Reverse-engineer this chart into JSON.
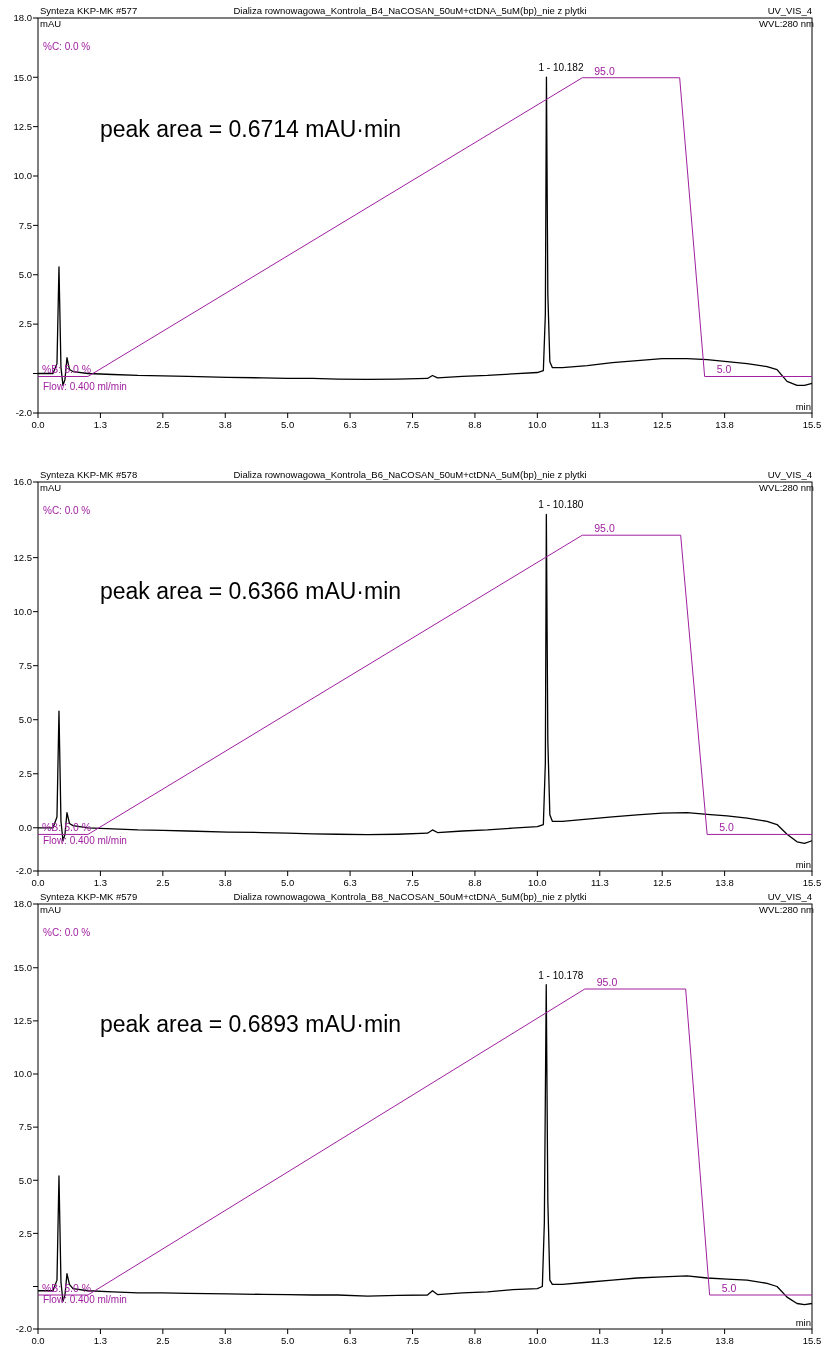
{
  "chart_data": [
    {
      "type": "line",
      "title": "Dializa rownowagowa_Kontrola_B4_NaCOSAN_50uM+ctDNA_5uM(bp)_nie z plytki",
      "xlabel": "min",
      "ylabel": "mAU",
      "xlim": [
        0,
        15.5
      ],
      "ylim": [
        -2,
        18
      ],
      "y2lim": [
        -6,
        113
      ],
      "xticks": [
        {
          "value": 0,
          "label": "0.0"
        },
        {
          "value": 1.25,
          "label": "1.3"
        },
        {
          "value": 2.5,
          "label": "2.5"
        },
        {
          "value": 3.75,
          "label": "3.8"
        },
        {
          "value": 5,
          "label": "5.0"
        },
        {
          "value": 6.25,
          "label": "6.3"
        },
        {
          "value": 7.5,
          "label": "7.5"
        },
        {
          "value": 8.75,
          "label": "8.8"
        },
        {
          "value": 10,
          "label": "10.0"
        },
        {
          "value": 11.25,
          "label": "11.3"
        },
        {
          "value": 12.5,
          "label": "12.5"
        },
        {
          "value": 13.75,
          "label": "13.8"
        },
        {
          "value": 15.5,
          "label": "15.5"
        }
      ],
      "yticks": [
        {
          "value": -2,
          "label": "-2.0"
        },
        {
          "value": 0,
          "label": null
        },
        {
          "value": 2.5,
          "label": "2.5"
        },
        {
          "value": 5,
          "label": "5.0"
        },
        {
          "value": 7.5,
          "label": "7.5"
        },
        {
          "value": 10,
          "label": "10.0"
        },
        {
          "value": 12.5,
          "label": "12.5"
        },
        {
          "value": 15,
          "label": "15.0"
        },
        {
          "value": 18,
          "label": "18.0"
        }
      ],
      "series": [
        {
          "color": "#000000",
          "x": [
            0,
            0.3,
            0.38,
            0.42,
            0.46,
            0.5,
            0.54,
            0.58,
            0.63,
            0.7,
            1.0,
            1.5,
            2.0,
            2.5,
            3.0,
            3.8,
            4.5,
            5.0,
            5.5,
            6.0,
            6.6,
            7.2,
            7.8,
            7.9,
            8.0,
            8.5,
            9.0,
            9.5,
            10.0,
            10.12,
            10.16,
            10.182,
            10.21,
            10.25,
            10.3,
            10.5,
            11.0,
            11.5,
            12.0,
            12.5,
            13.0,
            13.4,
            13.8,
            14.2,
            14.6,
            14.8,
            15.0,
            15.2,
            15.35,
            15.5
          ],
          "values": [
            0,
            0,
            0.5,
            5.4,
            0.3,
            -0.6,
            -0.3,
            0.8,
            0.2,
            0.1,
            0,
            -0.05,
            -0.1,
            -0.12,
            -0.15,
            -0.2,
            -0.22,
            -0.25,
            -0.25,
            -0.28,
            -0.3,
            -0.28,
            -0.25,
            -0.1,
            -0.22,
            -0.15,
            -0.1,
            -0.02,
            0.05,
            0.15,
            3,
            15,
            4,
            0.6,
            0.3,
            0.3,
            0.4,
            0.55,
            0.65,
            0.75,
            0.75,
            0.7,
            0.6,
            0.5,
            0.35,
            0.2,
            -0.4,
            -0.6,
            -0.6,
            -0.5
          ]
        },
        {
          "color": "#a020a0",
          "axis": "y2",
          "x": [
            0,
            1.0,
            10.9,
            12.85,
            13.35,
            15.5
          ],
          "values": [
            5,
            5,
            95,
            95,
            5,
            5
          ],
          "value_labels": [
            "%B: 5.0 %",
            null,
            "95.0",
            null,
            "5.0",
            null
          ]
        }
      ],
      "annotations": [
        "Synteza KKP-MK #577",
        "UV_VIS_4",
        "WVL:280 nm",
        "%C: 0.0 %",
        "Flow: 0.400 ml/min",
        "peak area = 0.6714 mAU·min",
        {
          "text": "1 - 10.182",
          "x": 10.182,
          "y": 15
        }
      ]
    },
    {
      "type": "line",
      "title": "Dializa rownowagowa_Kontrola_B6_NaCOSAN_50uM+ctDNA_5uM(bp)_nie z plytki",
      "xlabel": "min",
      "ylabel": "mAU",
      "xlim": [
        0,
        15.5
      ],
      "ylim": [
        -2,
        16
      ],
      "y2lim": [
        -6,
        111
      ],
      "xticks": [
        {
          "value": 0,
          "label": "0.0"
        },
        {
          "value": 1.25,
          "label": "1.3"
        },
        {
          "value": 2.5,
          "label": "2.5"
        },
        {
          "value": 3.75,
          "label": "3.8"
        },
        {
          "value": 5,
          "label": "5.0"
        },
        {
          "value": 6.25,
          "label": "6.3"
        },
        {
          "value": 7.5,
          "label": "7.5"
        },
        {
          "value": 8.75,
          "label": "8.8"
        },
        {
          "value": 10,
          "label": "10.0"
        },
        {
          "value": 11.25,
          "label": "11.3"
        },
        {
          "value": 12.5,
          "label": "12.5"
        },
        {
          "value": 13.75,
          "label": "13.8"
        },
        {
          "value": 15.5,
          "label": "15.5"
        }
      ],
      "yticks": [
        {
          "value": -2,
          "label": "-2.0"
        },
        {
          "value": 0,
          "label": "0.0"
        },
        {
          "value": 2.5,
          "label": "2.5"
        },
        {
          "value": 5,
          "label": "5.0"
        },
        {
          "value": 7.5,
          "label": "7.5"
        },
        {
          "value": 10,
          "label": "10.0"
        },
        {
          "value": 12.5,
          "label": "12.5"
        },
        {
          "value": 16,
          "label": "16.0"
        }
      ],
      "series": [
        {
          "color": "#000000",
          "x": [
            0,
            0.3,
            0.38,
            0.42,
            0.46,
            0.5,
            0.54,
            0.58,
            0.63,
            0.7,
            1.0,
            1.5,
            2.0,
            2.5,
            3.0,
            3.8,
            4.5,
            5.0,
            5.5,
            6.0,
            6.6,
            7.2,
            7.8,
            7.9,
            8.0,
            8.5,
            9.0,
            9.5,
            10.0,
            10.12,
            10.16,
            10.18,
            10.21,
            10.25,
            10.3,
            10.5,
            11.0,
            11.5,
            12.0,
            12.5,
            13.0,
            13.4,
            13.8,
            14.2,
            14.6,
            14.8,
            15.0,
            15.2,
            15.35,
            15.5
          ],
          "values": [
            0,
            0,
            0.5,
            5.4,
            0.3,
            -0.6,
            -0.3,
            0.7,
            0.2,
            0.1,
            0,
            -0.05,
            -0.1,
            -0.12,
            -0.15,
            -0.2,
            -0.22,
            -0.25,
            -0.28,
            -0.3,
            -0.32,
            -0.3,
            -0.25,
            -0.1,
            -0.22,
            -0.15,
            -0.1,
            -0.02,
            0.05,
            0.15,
            3,
            14.5,
            4,
            0.6,
            0.3,
            0.3,
            0.4,
            0.5,
            0.6,
            0.68,
            0.7,
            0.62,
            0.55,
            0.45,
            0.3,
            0.15,
            -0.3,
            -0.65,
            -0.72,
            -0.6
          ]
        },
        {
          "color": "#a020a0",
          "axis": "y2",
          "x": [
            0,
            1.0,
            10.9,
            12.87,
            13.4,
            15.5
          ],
          "values": [
            5,
            5,
            95,
            95,
            5,
            5
          ],
          "value_labels": [
            "%B: 5.0 %",
            null,
            "95.0",
            null,
            "5.0",
            null
          ]
        }
      ],
      "annotations": [
        "Synteza KKP-MK #578",
        "UV_VIS_4",
        "WVL:280 nm",
        "%C: 0.0 %",
        "Flow: 0.400 ml/min",
        "peak area = 0.6366 mAU·min",
        {
          "text": "1 - 10.180",
          "x": 10.18,
          "y": 14.5
        }
      ]
    },
    {
      "type": "line",
      "title": "Dializa rownowagowa_Kontrola_B8_NaCOSAN_50uM+ctDNA_5uM(bp)_nie z plytki",
      "xlabel": "min",
      "ylabel": "mAU",
      "xlim": [
        0,
        15.5
      ],
      "ylim": [
        -2,
        18
      ],
      "y2lim": [
        -5,
        120
      ],
      "xticks": [
        {
          "value": 0,
          "label": "0.0"
        },
        {
          "value": 1.25,
          "label": "1.3"
        },
        {
          "value": 2.5,
          "label": "2.5"
        },
        {
          "value": 3.75,
          "label": "3.8"
        },
        {
          "value": 5,
          "label": "5.0"
        },
        {
          "value": 6.25,
          "label": "6.3"
        },
        {
          "value": 7.5,
          "label": "7.5"
        },
        {
          "value": 8.75,
          "label": "8.8"
        },
        {
          "value": 10,
          "label": "10.0"
        },
        {
          "value": 11.25,
          "label": "11.3"
        },
        {
          "value": 12.5,
          "label": "12.5"
        },
        {
          "value": 13.75,
          "label": "13.8"
        },
        {
          "value": 15.5,
          "label": "15.5"
        }
      ],
      "yticks": [
        {
          "value": -2,
          "label": "-2.0"
        },
        {
          "value": 0,
          "label": null
        },
        {
          "value": 2.5,
          "label": "2.5"
        },
        {
          "value": 5,
          "label": "5.0"
        },
        {
          "value": 7.5,
          "label": "7.5"
        },
        {
          "value": 10,
          "label": "10.0"
        },
        {
          "value": 12.5,
          "label": "12.5"
        },
        {
          "value": 15,
          "label": "15.0"
        },
        {
          "value": 18,
          "label": "18.0"
        }
      ],
      "series": [
        {
          "color": "#000000",
          "x": [
            0,
            0.3,
            0.38,
            0.42,
            0.46,
            0.5,
            0.54,
            0.58,
            0.63,
            0.7,
            1.0,
            1.5,
            2.0,
            2.5,
            3.0,
            3.8,
            4.5,
            5.0,
            5.5,
            6.0,
            6.6,
            7.2,
            7.8,
            7.9,
            8.0,
            8.5,
            9.0,
            9.5,
            10.0,
            10.1,
            10.14,
            10.178,
            10.21,
            10.25,
            10.3,
            10.5,
            11.0,
            11.5,
            12.0,
            12.5,
            13.0,
            13.4,
            13.8,
            14.2,
            14.6,
            14.8,
            15.0,
            15.2,
            15.35,
            15.5
          ],
          "values": [
            -0.2,
            -0.2,
            0.3,
            5.2,
            0.2,
            -0.7,
            -0.4,
            0.6,
            0.1,
            -0.1,
            -0.2,
            -0.25,
            -0.3,
            -0.3,
            -0.32,
            -0.35,
            -0.37,
            -0.38,
            -0.4,
            -0.4,
            -0.45,
            -0.42,
            -0.4,
            -0.2,
            -0.38,
            -0.3,
            -0.25,
            -0.15,
            -0.1,
            0,
            3,
            14.2,
            4,
            0.3,
            0.1,
            0.1,
            0.2,
            0.3,
            0.4,
            0.45,
            0.5,
            0.4,
            0.35,
            0.3,
            0.15,
            0,
            -0.5,
            -0.8,
            -0.85,
            -0.8
          ]
        },
        {
          "color": "#a020a0",
          "axis": "y2",
          "x": [
            0,
            1.0,
            10.95,
            12.97,
            13.45,
            15.5
          ],
          "values": [
            5,
            5,
            95,
            95,
            5,
            5
          ],
          "value_labels": [
            "%B: 5.0 %",
            null,
            "95.0",
            null,
            "5.0",
            null
          ]
        }
      ],
      "annotations": [
        "Synteza KKP-MK #579",
        "UV_VIS_4",
        "WVL:280 nm",
        "%C: 0.0 %",
        "Flow: 0.400 ml/min",
        "peak area = 0.6893 mAU·min",
        {
          "text": "1 - 10.178",
          "x": 10.178,
          "y": 14.2
        }
      ]
    }
  ]
}
